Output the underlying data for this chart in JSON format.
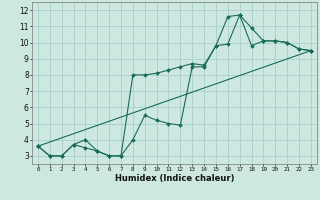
{
  "xlabel": "Humidex (Indice chaleur)",
  "background_color": "#cce8e0",
  "line_color": "#1a6b5a",
  "grid_color": "#aacfc8",
  "xlim": [
    -0.5,
    23.5
  ],
  "ylim": [
    2.5,
    12.5
  ],
  "xticks": [
    0,
    1,
    2,
    3,
    4,
    5,
    6,
    7,
    8,
    9,
    10,
    11,
    12,
    13,
    14,
    15,
    16,
    17,
    18,
    19,
    20,
    21,
    22,
    23
  ],
  "yticks": [
    3,
    4,
    5,
    6,
    7,
    8,
    9,
    10,
    11,
    12
  ],
  "line1_x": [
    0,
    1,
    2,
    3,
    4,
    5,
    6,
    7,
    8,
    9,
    10,
    11,
    12,
    13,
    14,
    15,
    16,
    17,
    18,
    19,
    20,
    21,
    22,
    23
  ],
  "line1_y": [
    3.6,
    3.0,
    3.0,
    3.7,
    4.0,
    3.3,
    3.0,
    3.0,
    4.0,
    5.5,
    5.2,
    5.0,
    4.9,
    8.5,
    8.5,
    9.8,
    9.9,
    11.7,
    9.8,
    10.1,
    10.1,
    10.0,
    9.6,
    9.5
  ],
  "line2_x": [
    0,
    1,
    2,
    3,
    4,
    5,
    6,
    7,
    8,
    9,
    10,
    11,
    12,
    13,
    14,
    15,
    16,
    17,
    18,
    19,
    20,
    21,
    22,
    23
  ],
  "line2_y": [
    3.6,
    3.0,
    3.0,
    3.7,
    3.5,
    3.3,
    3.0,
    3.0,
    8.0,
    8.0,
    8.1,
    8.3,
    8.5,
    8.7,
    8.6,
    9.8,
    11.6,
    11.7,
    10.9,
    10.1,
    10.1,
    10.0,
    9.6,
    9.5
  ],
  "line3_x": [
    0,
    23
  ],
  "line3_y": [
    3.6,
    9.5
  ]
}
